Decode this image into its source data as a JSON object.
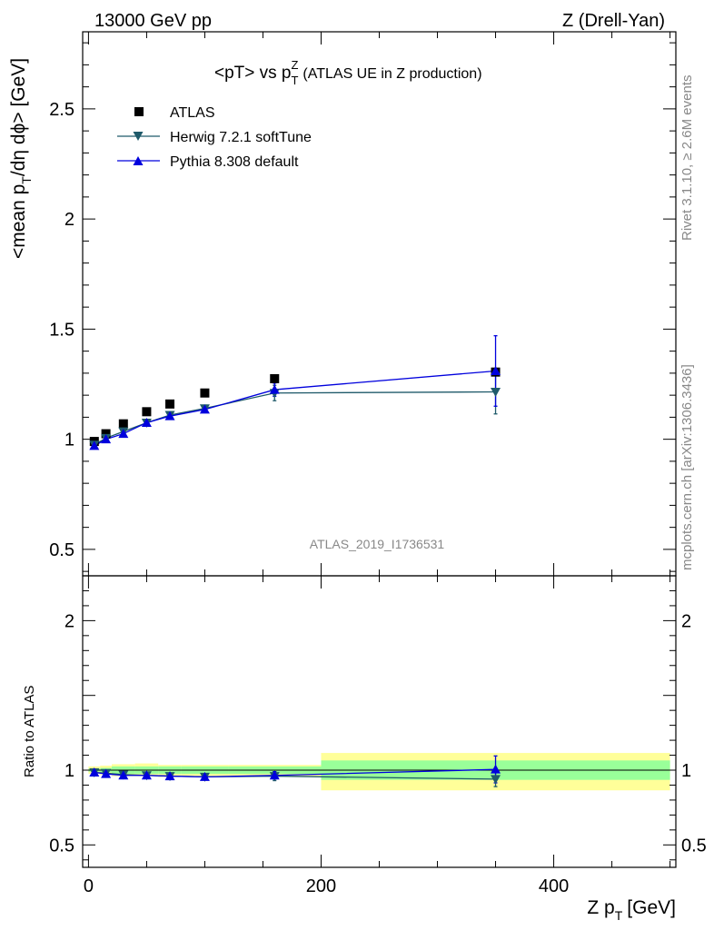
{
  "header": {
    "left": "13000 GeV pp",
    "right": "Z (Drell-Yan)"
  },
  "side": {
    "top": "Rivet 3.1.10, ≥ 2.6M events",
    "bottom": "mcplots.cern.ch [arXiv:1306.3436]"
  },
  "chart_data": {
    "type": "line",
    "title": "<pT> vs pTZ (ATLAS UE in Z production)",
    "title_parts": {
      "main": "<pT> vs p",
      "sub": "T",
      "sup": "Z",
      "tail": "(ATLAS UE in Z production)"
    },
    "watermark": "ATLAS_2019_I1736531",
    "xlabel": "Z pT [GeV]",
    "xlabel_parts": {
      "main": "Z p",
      "sub": "T",
      "tail": "[GeV]"
    },
    "ylabel": "<mean pT/dη dϕ> [GeV]",
    "ylabel_parts": {
      "main": "<mean p",
      "sub": "T",
      "tail": "/dη dϕ> [GeV]"
    },
    "ratio_ylabel": "Ratio to ATLAS",
    "xlim": [
      -5,
      505
    ],
    "ylim": [
      0.38,
      2.85
    ],
    "ratio_ylim": [
      0.35,
      2.3
    ],
    "xticks": [
      0,
      200,
      400
    ],
    "yticks": [
      0.5,
      1,
      1.5,
      2,
      2.5
    ],
    "ratio_yticks": [
      0.5,
      1,
      2
    ],
    "legend_placement": "top-left",
    "data_series": {
      "name": "ATLAS",
      "x": [
        5,
        15,
        30,
        50,
        70,
        100,
        160,
        350
      ],
      "y": [
        0.99,
        1.025,
        1.07,
        1.125,
        1.16,
        1.21,
        1.275,
        1.305
      ]
    },
    "series": [
      {
        "name": "Herwig 7.2.1 softTune",
        "color": "#1f5a6a",
        "marker": "triangle-down",
        "x": [
          5,
          15,
          30,
          50,
          70,
          100,
          160,
          350
        ],
        "y": [
          0.975,
          1.005,
          1.035,
          1.075,
          1.11,
          1.14,
          1.21,
          1.215
        ],
        "err": [
          0.005,
          0.005,
          0.005,
          0.005,
          0.01,
          0.015,
          0.035,
          0.1
        ],
        "ratio": [
          0.985,
          0.98,
          0.97,
          0.965,
          0.96,
          0.955,
          0.96,
          0.94
        ],
        "ratio_err": [
          0.005,
          0.005,
          0.005,
          0.005,
          0.01,
          0.01,
          0.03,
          0.05
        ]
      },
      {
        "name": "Pythia 8.308 default",
        "color": "#0000dd",
        "marker": "triangle-up",
        "x": [
          5,
          15,
          30,
          50,
          70,
          100,
          160,
          350
        ],
        "y": [
          0.97,
          1.0,
          1.025,
          1.075,
          1.105,
          1.135,
          1.225,
          1.31
        ],
        "err": [
          0.005,
          0.005,
          0.005,
          0.005,
          0.005,
          0.01,
          0.03,
          0.16
        ],
        "ratio": [
          0.985,
          0.975,
          0.965,
          0.965,
          0.96,
          0.955,
          0.965,
          1.005
        ],
        "ratio_err": [
          0.005,
          0.005,
          0.005,
          0.005,
          0.005,
          0.01,
          0.025,
          0.09
        ]
      }
    ],
    "ratio_bands": {
      "edges": [
        0,
        10,
        20,
        40,
        60,
        80,
        120,
        200,
        500
      ],
      "stat_lo": [
        0.99,
        0.985,
        0.975,
        0.975,
        0.975,
        0.975,
        0.975,
        0.935
      ],
      "stat_hi": [
        1.01,
        1.015,
        1.025,
        1.025,
        1.025,
        1.025,
        1.025,
        1.065
      ],
      "tot_lo": [
        0.975,
        0.97,
        0.96,
        0.96,
        0.955,
        0.96,
        0.96,
        0.865
      ],
      "tot_hi": [
        1.025,
        1.03,
        1.04,
        1.045,
        1.035,
        1.035,
        1.035,
        1.115
      ]
    },
    "colors": {
      "band_inner": "#99ff99",
      "band_outer": "#ffff99",
      "ref": "#000000"
    }
  }
}
